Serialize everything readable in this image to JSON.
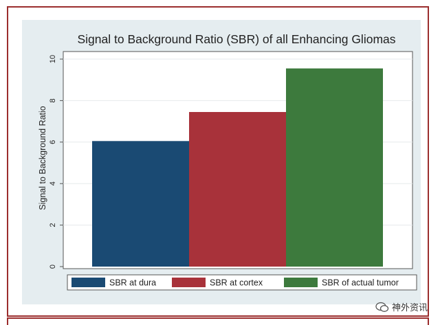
{
  "chart_data": {
    "type": "bar",
    "title": "Signal to Background Ratio (SBR) of all Enhancing Gliomas",
    "ylabel": "Signal to Background Ratio",
    "xlabel": "",
    "ylim": [
      0,
      10
    ],
    "yticks": [
      "0",
      "2",
      "4",
      "6",
      "8",
      "10"
    ],
    "grid": true,
    "legend_position": "bottom",
    "series": [
      {
        "name": "SBR at dura",
        "value": 6.05,
        "color": "#1a4a73"
      },
      {
        "name": "SBR at cortex",
        "value": 7.45,
        "color": "#a8323a"
      },
      {
        "name": "SBR of actual tumor",
        "value": 9.55,
        "color": "#3d7a3d"
      }
    ]
  },
  "watermark": {
    "text": "神外资讯"
  }
}
